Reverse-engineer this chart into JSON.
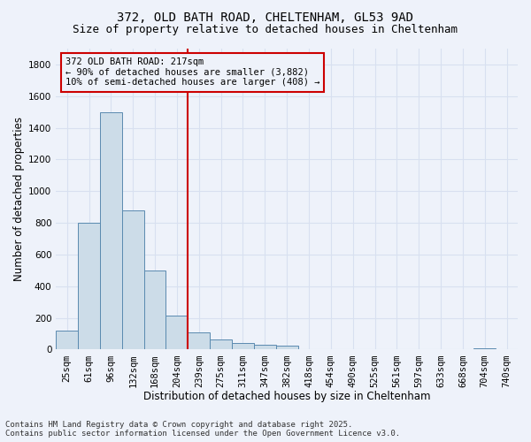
{
  "title_line1": "372, OLD BATH ROAD, CHELTENHAM, GL53 9AD",
  "title_line2": "Size of property relative to detached houses in Cheltenham",
  "xlabel": "Distribution of detached houses by size in Cheltenham",
  "ylabel": "Number of detached properties",
  "bar_color": "#ccdce8",
  "bar_edge_color": "#5a8ab0",
  "categories": [
    "25sqm",
    "61sqm",
    "96sqm",
    "132sqm",
    "168sqm",
    "204sqm",
    "239sqm",
    "275sqm",
    "311sqm",
    "347sqm",
    "382sqm",
    "418sqm",
    "454sqm",
    "490sqm",
    "525sqm",
    "561sqm",
    "597sqm",
    "633sqm",
    "668sqm",
    "704sqm",
    "740sqm"
  ],
  "values": [
    120,
    800,
    1500,
    880,
    500,
    215,
    110,
    65,
    40,
    30,
    25,
    0,
    0,
    0,
    0,
    0,
    0,
    0,
    0,
    10,
    0
  ],
  "ylim": [
    0,
    1900
  ],
  "yticks": [
    0,
    200,
    400,
    600,
    800,
    1000,
    1200,
    1400,
    1600,
    1800
  ],
  "vline_x": 6.0,
  "vline_color": "#cc0000",
  "annotation_title": "372 OLD BATH ROAD: 217sqm",
  "annotation_line1": "← 90% of detached houses are smaller (3,882)",
  "annotation_line2": "10% of semi-detached houses are larger (408) →",
  "annotation_box_color": "#cc0000",
  "footnote_line1": "Contains HM Land Registry data © Crown copyright and database right 2025.",
  "footnote_line2": "Contains public sector information licensed under the Open Government Licence v3.0.",
  "background_color": "#eef2fa",
  "grid_color": "#d8e0f0",
  "title_fontsize": 10,
  "subtitle_fontsize": 9,
  "axis_label_fontsize": 8.5,
  "tick_fontsize": 7.5,
  "annotation_fontsize": 7.5,
  "footnote_fontsize": 6.5
}
